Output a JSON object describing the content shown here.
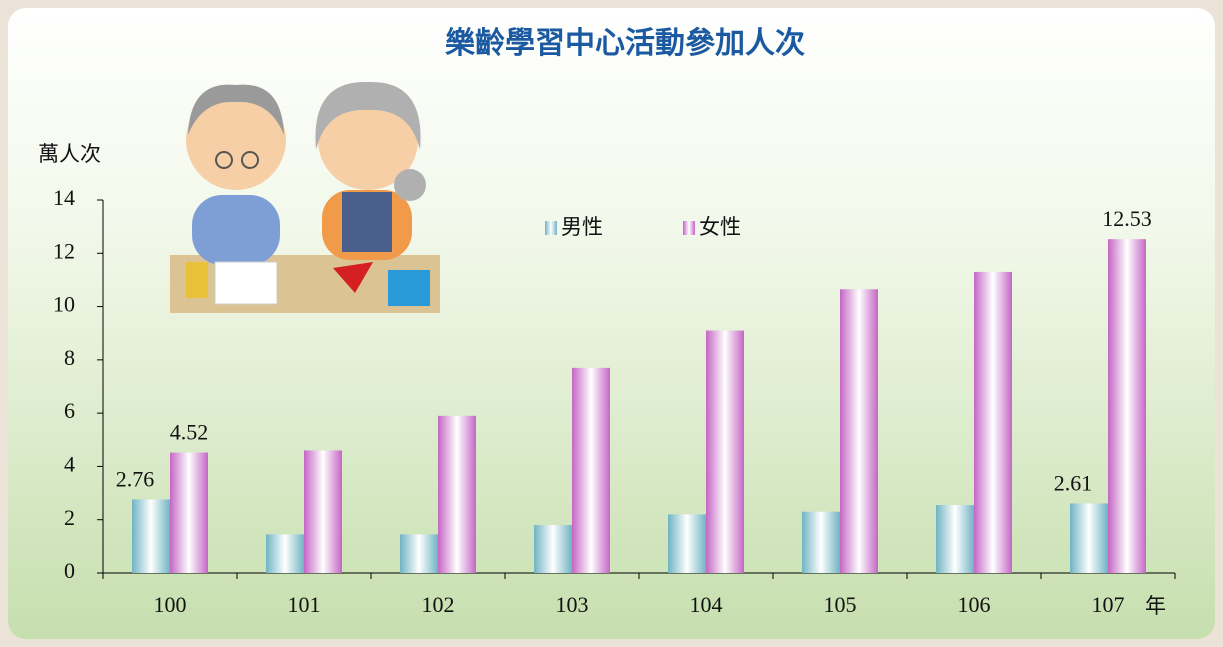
{
  "chart_data": {
    "type": "bar",
    "title": "樂齡學習中心活動參加人次",
    "y_label": "萬人次",
    "x_label": "年",
    "categories": [
      "100",
      "101",
      "102",
      "103",
      "104",
      "105",
      "106",
      "107"
    ],
    "series": [
      {
        "name": "男性",
        "color": "#6fb3c2",
        "values": [
          2.76,
          1.45,
          1.45,
          1.8,
          2.2,
          2.3,
          2.55,
          2.61
        ],
        "value_labels": [
          "2.76",
          null,
          null,
          null,
          null,
          null,
          null,
          "2.61"
        ]
      },
      {
        "name": "女性",
        "color": "#c466c4",
        "values": [
          4.52,
          4.6,
          5.9,
          7.7,
          9.1,
          10.65,
          11.3,
          12.53
        ],
        "value_labels": [
          "4.52",
          null,
          null,
          null,
          null,
          null,
          null,
          "12.53"
        ]
      }
    ],
    "ylim": [
      0,
      14
    ],
    "yticks": [
      0,
      2,
      4,
      6,
      8,
      10,
      12,
      14
    ],
    "grid": false
  }
}
